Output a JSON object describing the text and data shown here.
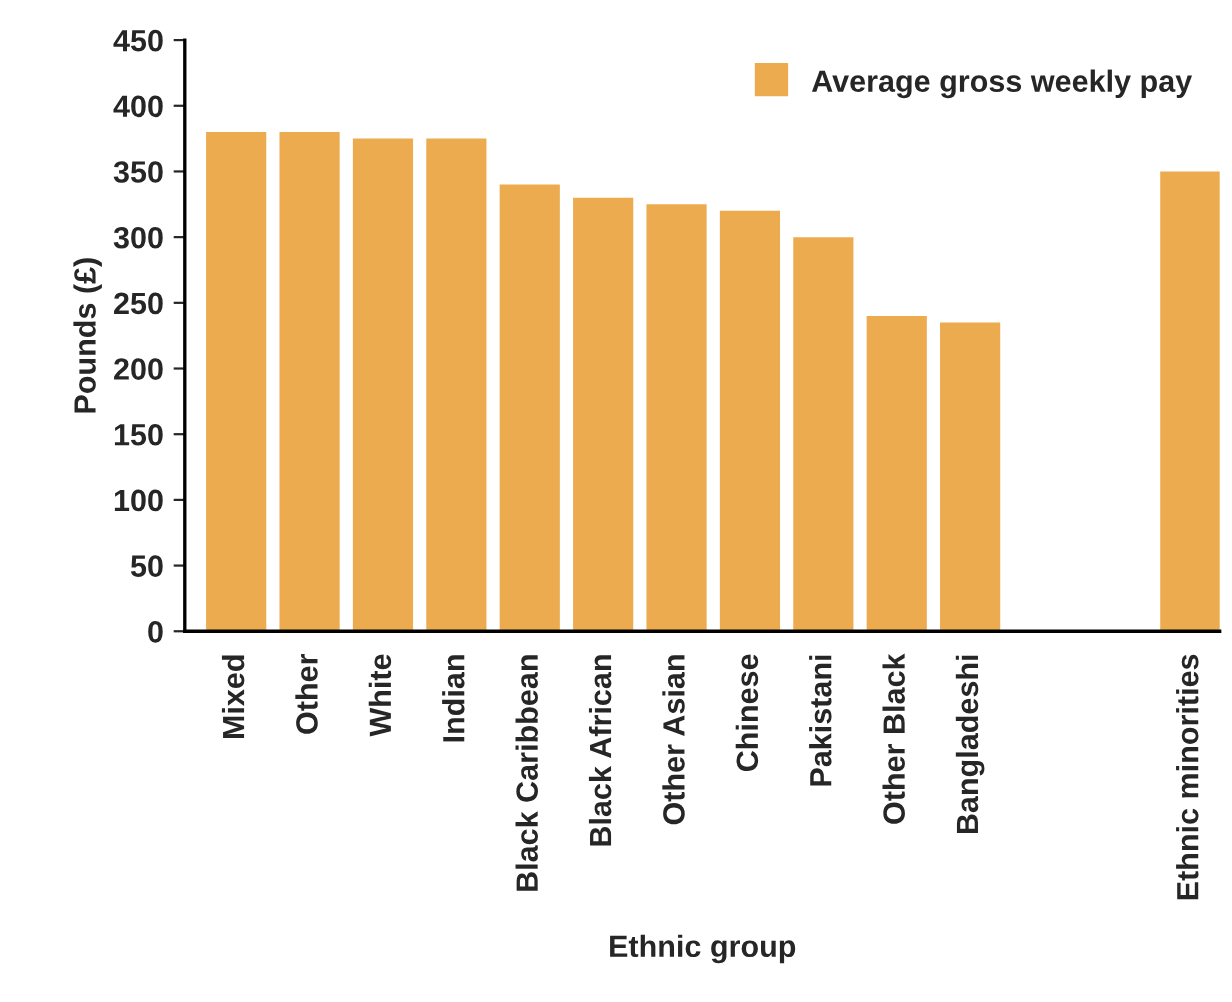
{
  "chart_data": {
    "type": "bar",
    "xlabel": "Ethnic group",
    "ylabel": "Pounds (£)",
    "categories": [
      "Mixed",
      "Other",
      "White",
      "Indian",
      "Black Caribbean",
      "Black African",
      "Other Asian",
      "Chinese",
      "Pakistani",
      "Other Black",
      "Bangladeshi",
      null,
      null,
      "Ethnic minorities"
    ],
    "series": [
      {
        "name": "Average gross weekly pay",
        "color": "#ecab4f",
        "values": [
          380,
          380,
          375,
          375,
          340,
          330,
          325,
          320,
          300,
          240,
          235,
          null,
          null,
          350
        ]
      }
    ],
    "ylim": [
      0,
      450
    ],
    "yticks": [
      0,
      50,
      100,
      150,
      200,
      250,
      300,
      350,
      400,
      450
    ],
    "grid": false,
    "legend": "top right"
  }
}
